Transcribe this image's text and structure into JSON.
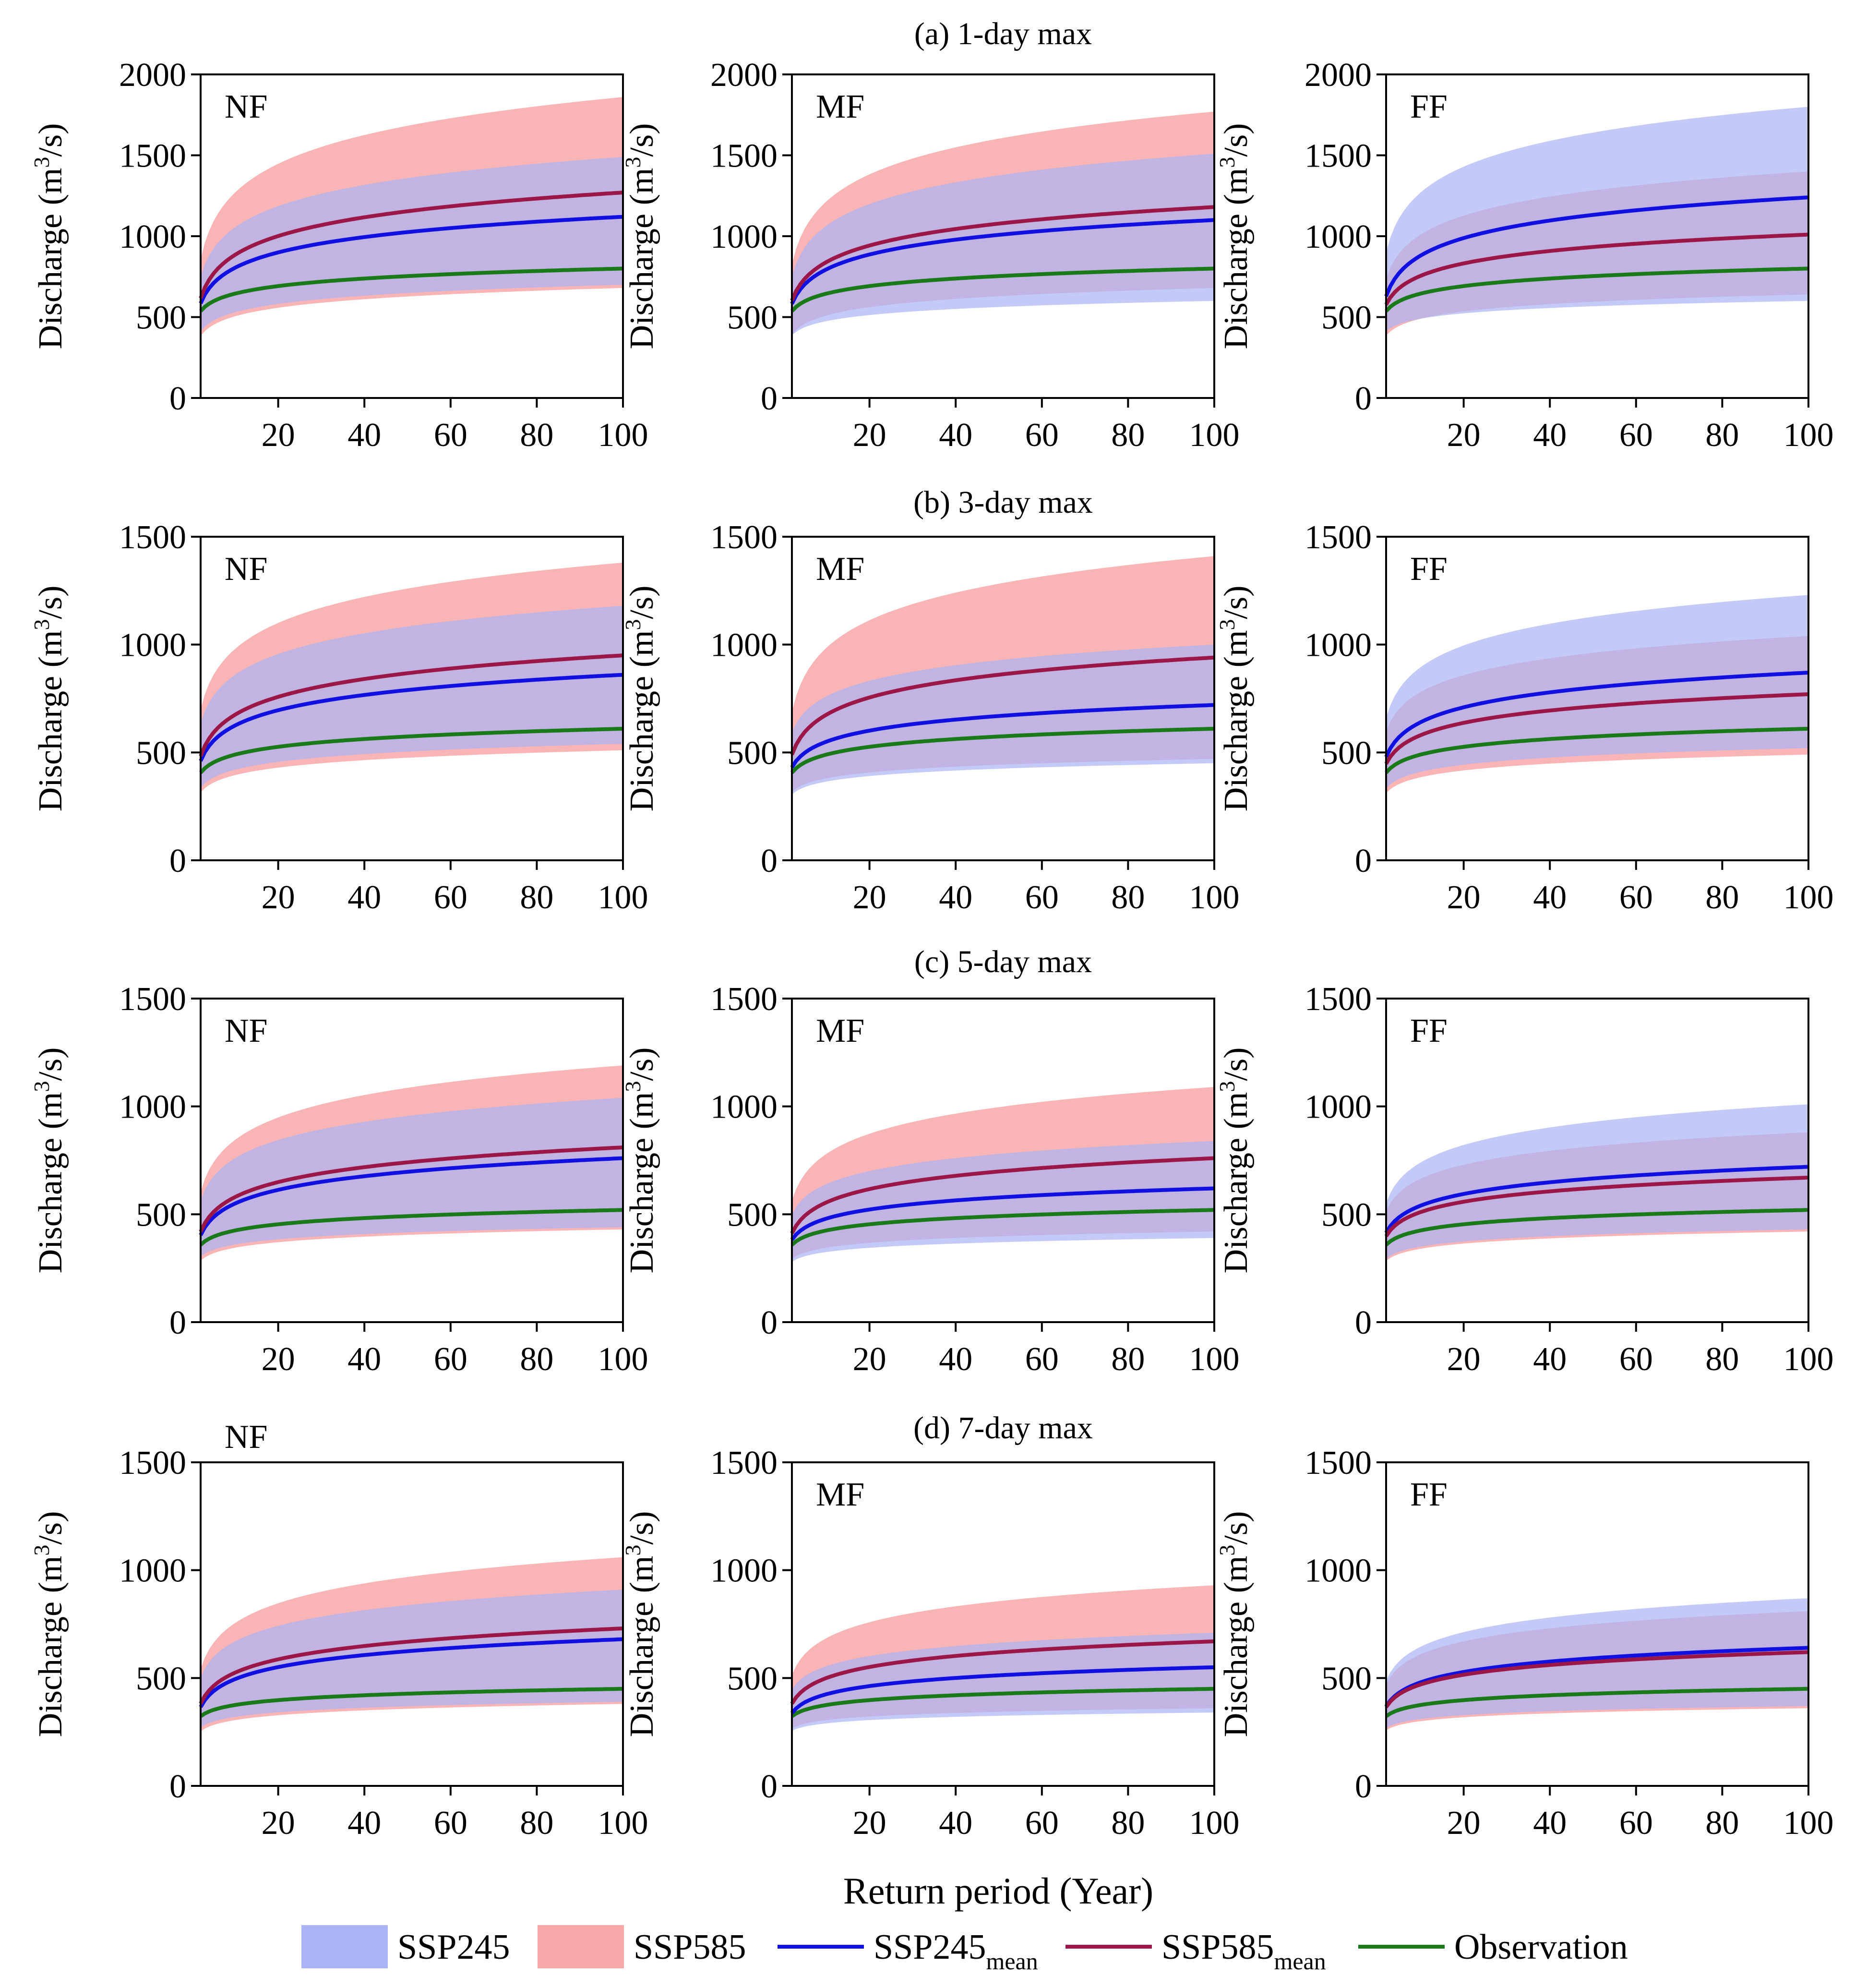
{
  "figure": {
    "xlabel": "Return period (Year)",
    "ylabel_main": "Discharge (m",
    "ylabel_sup": "3",
    "ylabel_end": "/s)"
  },
  "colors": {
    "ssp245_band": "#a9b4f5",
    "ssp585_band": "#f8a8a8",
    "ssp245_mean": "#1010e0",
    "ssp585_mean": "#9b1748",
    "observation": "#1a7a1a"
  },
  "legend": {
    "items": [
      {
        "key": "ssp245_band",
        "kind": "band",
        "label": "SSP245",
        "sub": ""
      },
      {
        "key": "ssp585_band",
        "kind": "band",
        "label": "SSP585",
        "sub": ""
      },
      {
        "key": "ssp245_mean",
        "kind": "line",
        "label": "SSP245",
        "sub": "mean"
      },
      {
        "key": "ssp585_mean",
        "kind": "line",
        "label": "SSP585",
        "sub": "mean"
      },
      {
        "key": "observation",
        "kind": "line",
        "label": "Observation",
        "sub": ""
      }
    ]
  },
  "chart_data": [
    {
      "type": "area",
      "row": 0,
      "col": 0,
      "row_title": "(a) 1-day max",
      "period": "NF",
      "x_range": [
        2,
        100
      ],
      "ylim": [
        0,
        2000
      ],
      "yticks": [
        0,
        500,
        1000,
        1500,
        2000
      ],
      "xticks": [
        20,
        40,
        60,
        80,
        100
      ],
      "ssp245_band": {
        "start": [
          360,
          620
        ],
        "end": [
          700,
          1490
        ]
      },
      "ssp585_band": {
        "start": [
          330,
          680
        ],
        "end": [
          680,
          1860
        ]
      },
      "ssp245_mean": [
        490,
        1120
      ],
      "ssp585_mean": [
        500,
        1270
      ],
      "observation": [
        490,
        800
      ]
    },
    {
      "type": "area",
      "row": 0,
      "col": 1,
      "period": "MF",
      "x_range": [
        2,
        100
      ],
      "ylim": [
        0,
        2000
      ],
      "yticks": [
        0,
        500,
        1000,
        1500,
        2000
      ],
      "xticks": [
        20,
        40,
        60,
        80,
        100
      ],
      "ssp245_band": {
        "start": [
          350,
          620
        ],
        "end": [
          600,
          1510
        ]
      },
      "ssp585_band": {
        "start": [
          340,
          660
        ],
        "end": [
          680,
          1770
        ]
      },
      "ssp245_mean": [
        490,
        1100
      ],
      "ssp585_mean": [
        500,
        1180
      ],
      "observation": [
        490,
        800
      ]
    },
    {
      "type": "area",
      "row": 0,
      "col": 2,
      "period": "FF",
      "x_range": [
        2,
        100
      ],
      "ylim": [
        0,
        2000
      ],
      "yticks": [
        0,
        500,
        1000,
        1500,
        2000
      ],
      "xticks": [
        20,
        40,
        60,
        80,
        100
      ],
      "ssp245_band": {
        "start": [
          380,
          740
        ],
        "end": [
          600,
          1800
        ]
      },
      "ssp585_band": {
        "start": [
          340,
          620
        ],
        "end": [
          640,
          1400
        ]
      },
      "ssp245_mean": [
        520,
        1240
      ],
      "ssp585_mean": [
        500,
        1010
      ],
      "observation": [
        490,
        800
      ]
    },
    {
      "type": "area",
      "row": 1,
      "col": 0,
      "row_title": "(b) 3-day max",
      "period": "NF",
      "x_range": [
        2,
        100
      ],
      "ylim": [
        0,
        1500
      ],
      "yticks": [
        0,
        500,
        1000,
        1500
      ],
      "xticks": [
        20,
        40,
        60,
        80,
        100
      ],
      "ssp245_band": {
        "start": [
          300,
          540
        ],
        "end": [
          540,
          1180
        ]
      },
      "ssp585_band": {
        "start": [
          280,
          580
        ],
        "end": [
          510,
          1380
        ]
      },
      "ssp245_mean": [
        390,
        860
      ],
      "ssp585_mean": [
        400,
        950
      ],
      "observation": [
        370,
        610
      ]
    },
    {
      "type": "area",
      "row": 1,
      "col": 1,
      "period": "MF",
      "x_range": [
        2,
        100
      ],
      "ylim": [
        0,
        1500
      ],
      "yticks": [
        0,
        500,
        1000,
        1500
      ],
      "xticks": [
        20,
        40,
        60,
        80,
        100
      ],
      "ssp245_band": {
        "start": [
          280,
          520
        ],
        "end": [
          450,
          1000
        ]
      },
      "ssp585_band": {
        "start": [
          290,
          560
        ],
        "end": [
          470,
          1410
        ]
      },
      "ssp245_mean": [
        380,
        720
      ],
      "ssp585_mean": [
        410,
        940
      ],
      "observation": [
        370,
        610
      ]
    },
    {
      "type": "area",
      "row": 1,
      "col": 2,
      "period": "FF",
      "x_range": [
        2,
        100
      ],
      "ylim": [
        0,
        1500
      ],
      "yticks": [
        0,
        500,
        1000,
        1500
      ],
      "xticks": [
        20,
        40,
        60,
        80,
        100
      ],
      "ssp245_band": {
        "start": [
          300,
          560
        ],
        "end": [
          520,
          1230
        ]
      },
      "ssp585_band": {
        "start": [
          280,
          520
        ],
        "end": [
          490,
          1040
        ]
      },
      "ssp245_mean": [
        410,
        870
      ],
      "ssp585_mean": [
        390,
        770
      ],
      "observation": [
        370,
        610
      ]
    },
    {
      "type": "area",
      "row": 2,
      "col": 0,
      "row_title": "(c) 5-day max",
      "period": "NF",
      "x_range": [
        2,
        100
      ],
      "ylim": [
        0,
        1500
      ],
      "yticks": [
        0,
        500,
        1000,
        1500
      ],
      "xticks": [
        20,
        40,
        60,
        80,
        100
      ],
      "ssp245_band": {
        "start": [
          280,
          480
        ],
        "end": [
          440,
          1040
        ]
      },
      "ssp585_band": {
        "start": [
          260,
          500
        ],
        "end": [
          430,
          1190
        ]
      },
      "ssp245_mean": [
        340,
        760
      ],
      "ssp585_mean": [
        350,
        810
      ],
      "observation": [
        330,
        520
      ]
    },
    {
      "type": "area",
      "row": 2,
      "col": 1,
      "period": "MF",
      "x_range": [
        2,
        100
      ],
      "ylim": [
        0,
        1500
      ],
      "yticks": [
        0,
        500,
        1000,
        1500
      ],
      "xticks": [
        20,
        40,
        60,
        80,
        100
      ],
      "ssp245_band": {
        "start": [
          260,
          440
        ],
        "end": [
          390,
          840
        ]
      },
      "ssp585_band": {
        "start": [
          270,
          470
        ],
        "end": [
          420,
          1090
        ]
      },
      "ssp245_mean": [
        340,
        620
      ],
      "ssp585_mean": [
        350,
        760
      ],
      "observation": [
        330,
        520
      ]
    },
    {
      "type": "area",
      "row": 2,
      "col": 2,
      "period": "FF",
      "x_range": [
        2,
        100
      ],
      "ylim": [
        0,
        1500
      ],
      "yticks": [
        0,
        500,
        1000,
        1500
      ],
      "xticks": [
        20,
        40,
        60,
        80,
        100
      ],
      "ssp245_band": {
        "start": [
          270,
          470
        ],
        "end": [
          430,
          1010
        ]
      },
      "ssp585_band": {
        "start": [
          260,
          450
        ],
        "end": [
          420,
          880
        ]
      },
      "ssp245_mean": [
        360,
        720
      ],
      "ssp585_mean": [
        350,
        670
      ],
      "observation": [
        330,
        520
      ]
    },
    {
      "type": "area",
      "row": 3,
      "col": 0,
      "row_title": "(d) 7-day max",
      "period": "NF",
      "x_range": [
        2,
        100
      ],
      "ylim": [
        0,
        1500
      ],
      "yticks": [
        0,
        500,
        1000,
        1500
      ],
      "xticks": [
        20,
        40,
        60,
        80,
        100
      ],
      "ssp245_band": {
        "start": [
          250,
          430
        ],
        "end": [
          390,
          910
        ]
      },
      "ssp585_band": {
        "start": [
          230,
          450
        ],
        "end": [
          380,
          1060
        ]
      },
      "ssp245_mean": [
        310,
        680
      ],
      "ssp585_mean": [
        320,
        730
      ],
      "observation": [
        300,
        450
      ]
    },
    {
      "type": "area",
      "row": 3,
      "col": 1,
      "period": "MF",
      "x_range": [
        2,
        100
      ],
      "ylim": [
        0,
        1500
      ],
      "yticks": [
        0,
        500,
        1000,
        1500
      ],
      "xticks": [
        20,
        40,
        60,
        80,
        100
      ],
      "ssp245_band": {
        "start": [
          240,
          400
        ],
        "end": [
          340,
          710
        ]
      },
      "ssp585_band": {
        "start": [
          250,
          440
        ],
        "end": [
          360,
          930
        ]
      },
      "ssp245_mean": [
        300,
        550
      ],
      "ssp585_mean": [
        330,
        670
      ],
      "observation": [
        300,
        450
      ]
    },
    {
      "type": "area",
      "row": 3,
      "col": 2,
      "period": "FF",
      "x_range": [
        2,
        100
      ],
      "ylim": [
        0,
        1500
      ],
      "yticks": [
        0,
        500,
        1000,
        1500
      ],
      "xticks": [
        20,
        40,
        60,
        80,
        100
      ],
      "ssp245_band": {
        "start": [
          250,
          420
        ],
        "end": [
          370,
          870
        ]
      },
      "ssp585_band": {
        "start": [
          240,
          410
        ],
        "end": [
          360,
          810
        ]
      },
      "ssp245_mean": [
        320,
        640
      ],
      "ssp585_mean": [
        320,
        620
      ],
      "observation": [
        300,
        450
      ]
    }
  ]
}
